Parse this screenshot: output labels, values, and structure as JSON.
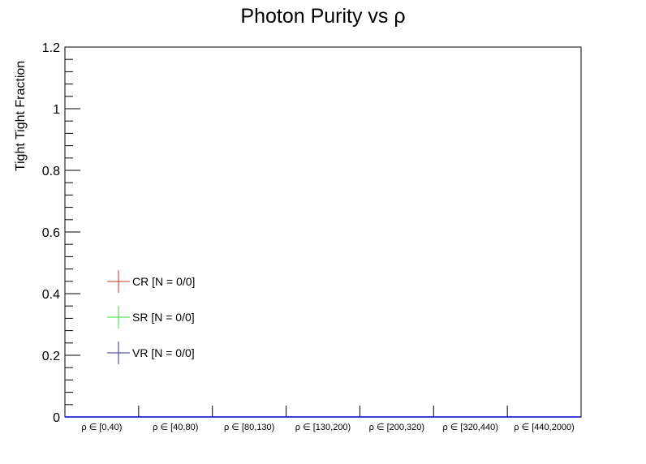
{
  "chart_data": {
    "type": "bar",
    "title": "Photon Purity vs  ρ",
    "xlabel": "",
    "ylabel": "Tight Tight Fraction",
    "ylim": [
      0,
      1.2
    ],
    "yticks": [
      "0",
      "0.2",
      "0.4",
      "0.6",
      "0.8",
      "1",
      "1.2"
    ],
    "ytick_values": [
      0,
      0.2,
      0.4,
      0.6,
      0.8,
      1.0,
      1.2
    ],
    "categories": [
      "ρ ∈ [0,40)",
      "ρ ∈ [40,80)",
      "ρ ∈ [80,130)",
      "ρ ∈ [130,200)",
      "ρ ∈ [200,320)",
      "ρ ∈ [320,440)",
      "ρ ∈ [440,2000)"
    ],
    "series": [
      {
        "name": "CR [N = 0/0]",
        "color": "#cc3333",
        "values": [
          0,
          0,
          0,
          0,
          0,
          0,
          0
        ]
      },
      {
        "name": "SR [N = 0/0]",
        "color": "#33dd33",
        "values": [
          0,
          0,
          0,
          0,
          0,
          0,
          0
        ]
      },
      {
        "name": "VR [N = 0/0]",
        "color": "#333399",
        "values": [
          0,
          0,
          0,
          0,
          0,
          0,
          0
        ]
      }
    ],
    "legend_position": "lower-left",
    "grid": false,
    "frame_color": "#000000",
    "baseline_color": "#0000cc"
  }
}
